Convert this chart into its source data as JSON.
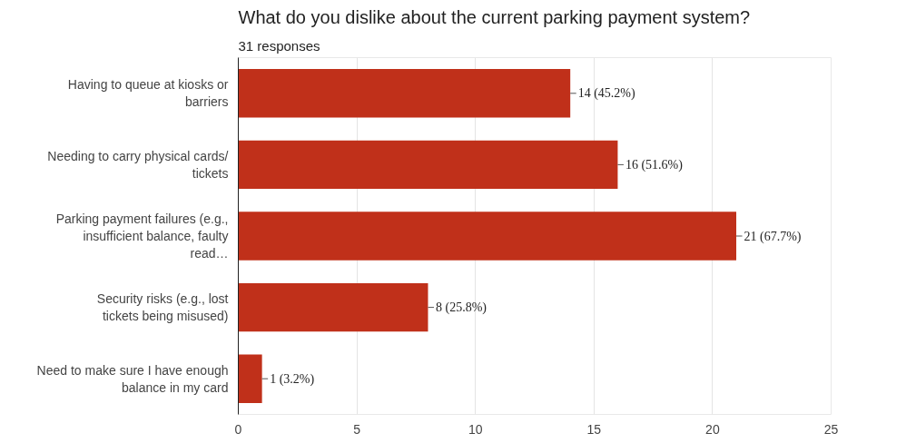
{
  "chart_data": {
    "type": "bar",
    "orientation": "horizontal",
    "title": "What do you dislike about the current parking payment system?",
    "subtitle": "31 responses",
    "categories": [
      "Having to queue at kiosks or barriers",
      "Needing to carry physical cards/ tickets",
      "Parking payment failures (e.g., insufficient balance, faulty read…",
      "Security risks (e.g., lost tickets being misused)",
      "Need to make sure I have enough balance in my card"
    ],
    "values": [
      14,
      16,
      21,
      8,
      1
    ],
    "value_labels": [
      "14 (45.2%)",
      "16 (51.6%)",
      "21 (67.7%)",
      "8 (25.8%)",
      "1 (3.2%)"
    ],
    "color": "#c0301a",
    "xlim": [
      0,
      25
    ],
    "xticks": [
      0,
      5,
      10,
      15,
      20,
      25
    ],
    "grid": "x"
  }
}
